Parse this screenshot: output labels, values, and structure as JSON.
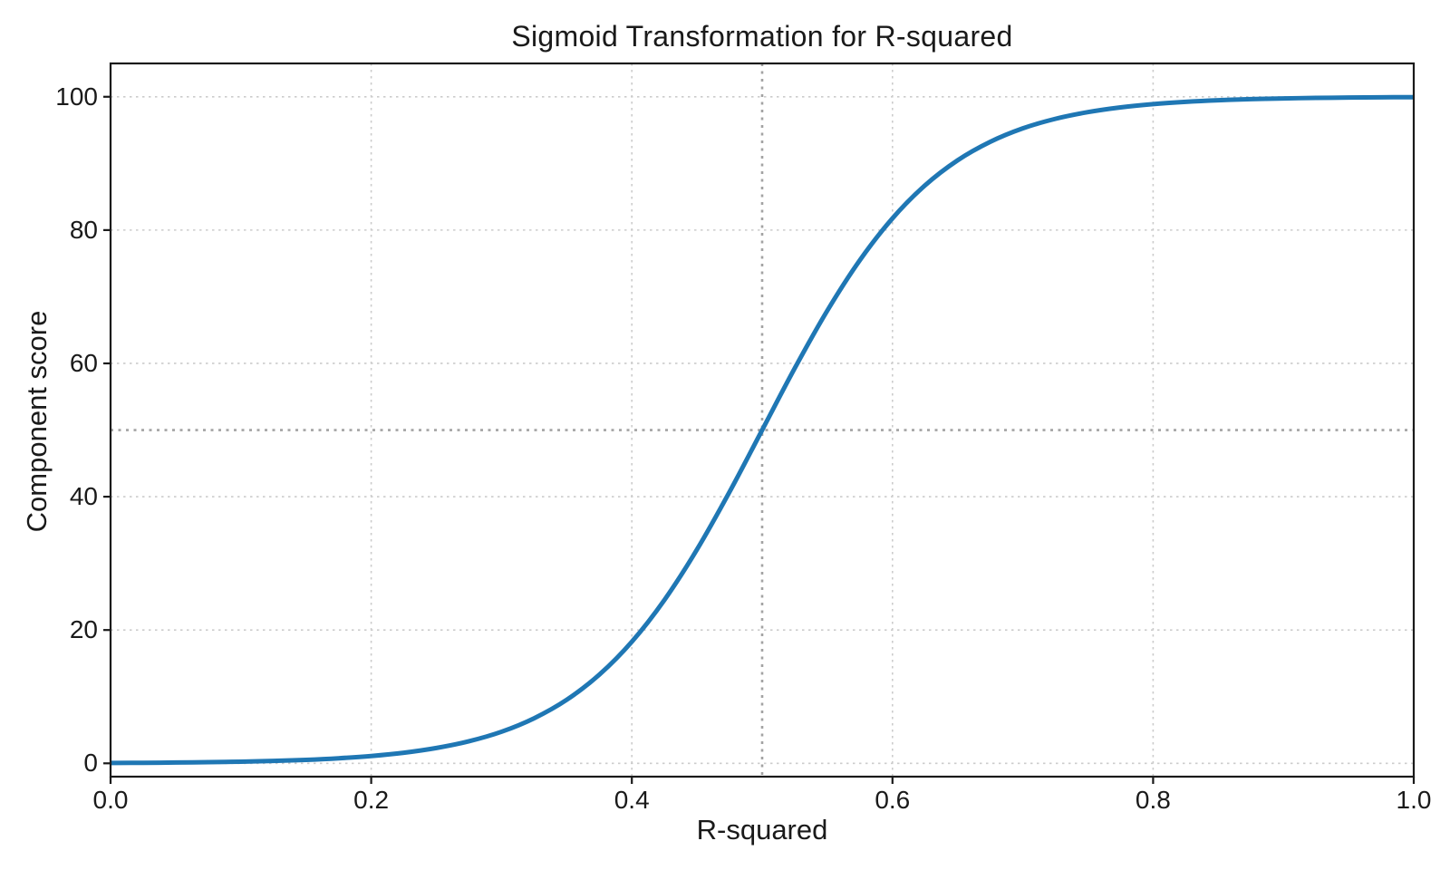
{
  "chart_data": {
    "type": "line",
    "title": "Sigmoid Transformation for R-squared",
    "xlabel": "R-squared",
    "ylabel": "Component score",
    "xlim": [
      0.0,
      1.0
    ],
    "ylim": [
      -2,
      105
    ],
    "x_ticks": [
      0.0,
      0.2,
      0.4,
      0.6,
      0.8,
      1.0
    ],
    "x_tick_labels": [
      "0.0",
      "0.2",
      "0.4",
      "0.6",
      "0.8",
      "1.0"
    ],
    "y_ticks": [
      0,
      20,
      40,
      60,
      80,
      100
    ],
    "y_tick_labels": [
      "0",
      "20",
      "40",
      "60",
      "80",
      "100"
    ],
    "grid": true,
    "legend": false,
    "reference_lines": [
      {
        "axis": "x",
        "value": 0.5
      },
      {
        "axis": "y",
        "value": 50
      }
    ],
    "series": [
      {
        "name": "sigmoid-curve",
        "color": "#1f77b4",
        "line_width": 5,
        "x": [
          0.0,
          0.025,
          0.05,
          0.075,
          0.1,
          0.125,
          0.15,
          0.175,
          0.2,
          0.225,
          0.25,
          0.275,
          0.3,
          0.325,
          0.35,
          0.375,
          0.4,
          0.425,
          0.45,
          0.475,
          0.5,
          0.525,
          0.55,
          0.575,
          0.6,
          0.625,
          0.65,
          0.675,
          0.7,
          0.725,
          0.75,
          0.775,
          0.8,
          0.825,
          0.85,
          0.875,
          0.9,
          0.925,
          0.95,
          0.975,
          1.0
        ],
        "y": [
          0.06,
          0.08,
          0.12,
          0.17,
          0.25,
          0.36,
          0.52,
          0.76,
          1.1,
          1.59,
          2.3,
          3.31,
          4.74,
          6.76,
          9.53,
          13.29,
          18.24,
          24.51,
          32.08,
          40.73,
          50.0,
          59.27,
          67.92,
          75.49,
          81.76,
          86.71,
          90.47,
          93.24,
          95.26,
          96.69,
          97.7,
          98.41,
          98.9,
          99.24,
          99.48,
          99.64,
          99.75,
          99.83,
          99.88,
          99.92,
          99.94
        ]
      }
    ],
    "colors": {
      "curve": "#1f77b4",
      "grid": "#cccccc",
      "reference_line": "#a3a3a3",
      "spine": "#1a1a1a",
      "text": "#1a1a1a",
      "background": "#ffffff"
    }
  }
}
